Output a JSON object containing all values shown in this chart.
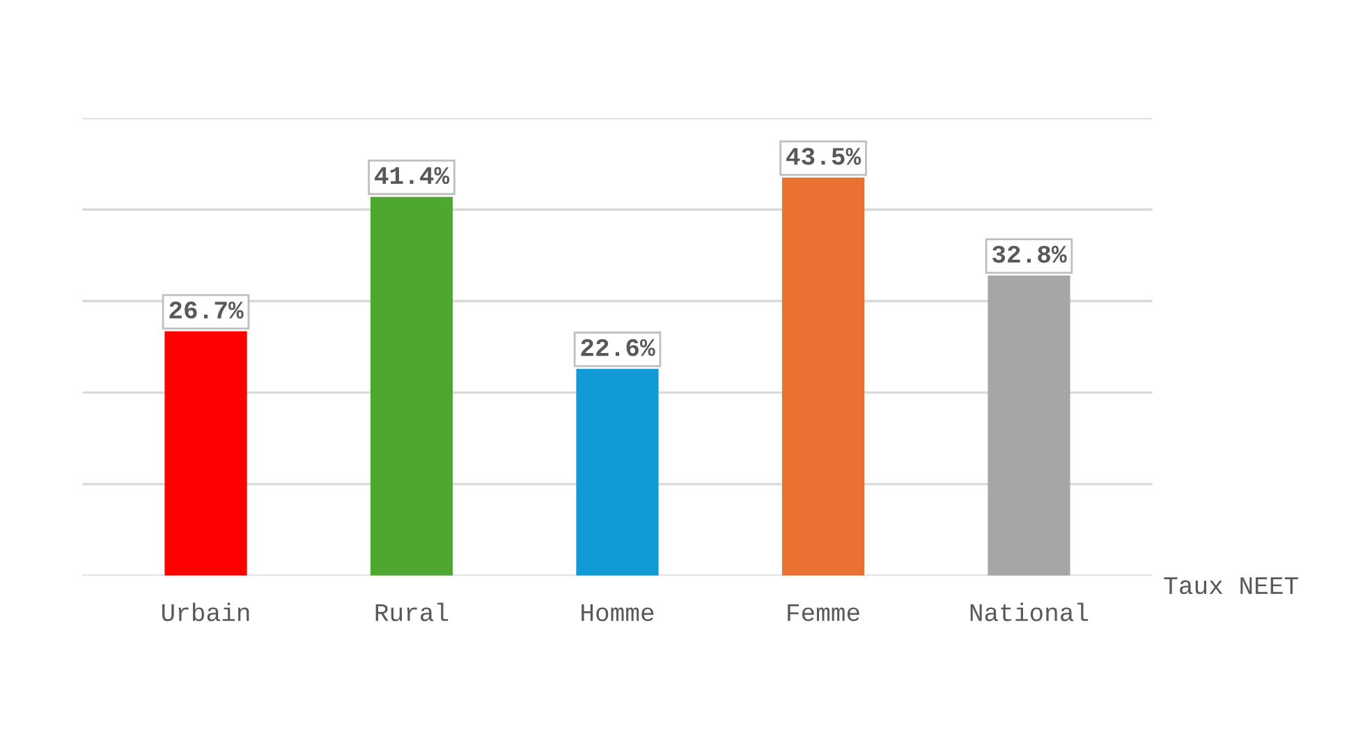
{
  "chart_data": {
    "type": "bar",
    "categories": [
      "Urbain",
      "Rural",
      "Homme",
      "Femme",
      "National"
    ],
    "values": [
      26.7,
      41.4,
      22.6,
      43.5,
      32.8
    ],
    "colors": [
      "#ff0000",
      "#4ea72e",
      "#109ad6",
      "#e97132",
      "#a6a6a6"
    ],
    "value_labels": [
      "26.7%",
      "41.4%",
      "22.6%",
      "43.5%",
      "32.8%"
    ],
    "xlabel": "Taux NEET",
    "ylim": [
      0,
      50
    ],
    "yticks": [
      {
        "value": 0,
        "label": null
      },
      {
        "value": 10,
        "label": null
      },
      {
        "value": 20,
        "label": null
      },
      {
        "value": 30,
        "label": null
      },
      {
        "value": 40,
        "label": null
      },
      {
        "value": 50,
        "label": null
      }
    ],
    "tick_labels": "x",
    "grid": "y"
  }
}
